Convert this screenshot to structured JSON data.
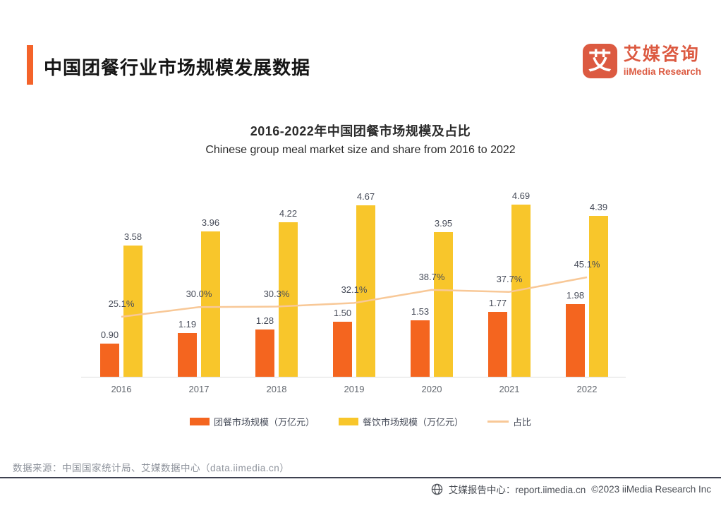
{
  "header": {
    "title": "中国团餐行业市场规模发展数据",
    "logo": {
      "glyph": "艾",
      "name_cn": "艾媒咨询",
      "name_en": "iiMedia Research"
    }
  },
  "chart": {
    "title_cn": "2016-2022年中国团餐市场规模及占比",
    "title_en": "Chinese group meal market size and share from 2016 to 2022"
  },
  "chart_data": {
    "type": "bar",
    "categories": [
      "2016",
      "2017",
      "2018",
      "2019",
      "2020",
      "2021",
      "2022"
    ],
    "series": [
      {
        "name": "团餐市场规模（万亿元）",
        "type": "bar",
        "color": "#F4651F",
        "values": [
          0.9,
          1.19,
          1.28,
          1.5,
          1.53,
          1.77,
          1.98
        ],
        "labels": [
          "0.90",
          "1.19",
          "1.28",
          "1.50",
          "1.53",
          "1.77",
          "1.98"
        ]
      },
      {
        "name": "餐饮市场规模（万亿元）",
        "type": "bar",
        "color": "#F8C62B",
        "values": [
          3.58,
          3.96,
          4.22,
          4.67,
          3.95,
          4.69,
          4.39
        ],
        "labels": [
          "3.58",
          "3.96",
          "4.22",
          "4.67",
          "3.95",
          "4.69",
          "4.39"
        ]
      },
      {
        "name": "占比",
        "type": "line",
        "color": "#F8C897",
        "values": [
          25.1,
          30.0,
          30.3,
          32.1,
          38.7,
          37.7,
          45.1
        ],
        "labels": [
          "25.1%",
          "30.0%",
          "30.3%",
          "32.1%",
          "38.7%",
          "37.7%",
          "45.1%"
        ]
      }
    ],
    "title": "2016-2022年中国团餐市场规模及占比",
    "subtitle": "Chinese group meal market size and share from 2016 to 2022",
    "xlabel": "",
    "ylabel": "",
    "value_axis_range": [
      0,
      5
    ],
    "grid": false,
    "legend_position": "bottom"
  },
  "footer": {
    "source": "数据来源：中国国家统计局、艾媒数据中心（data.iimedia.cn）",
    "report_center": "艾媒报告中心：report.iimedia.cn",
    "copyright": "©2023  iiMedia Research Inc"
  },
  "colors": {
    "accent": "#F4632A",
    "bar_group_meal": "#F4651F",
    "bar_catering": "#F8C62B",
    "share_line": "#F8C897",
    "logo": "#DC5A41",
    "divider": "#3E4150"
  }
}
